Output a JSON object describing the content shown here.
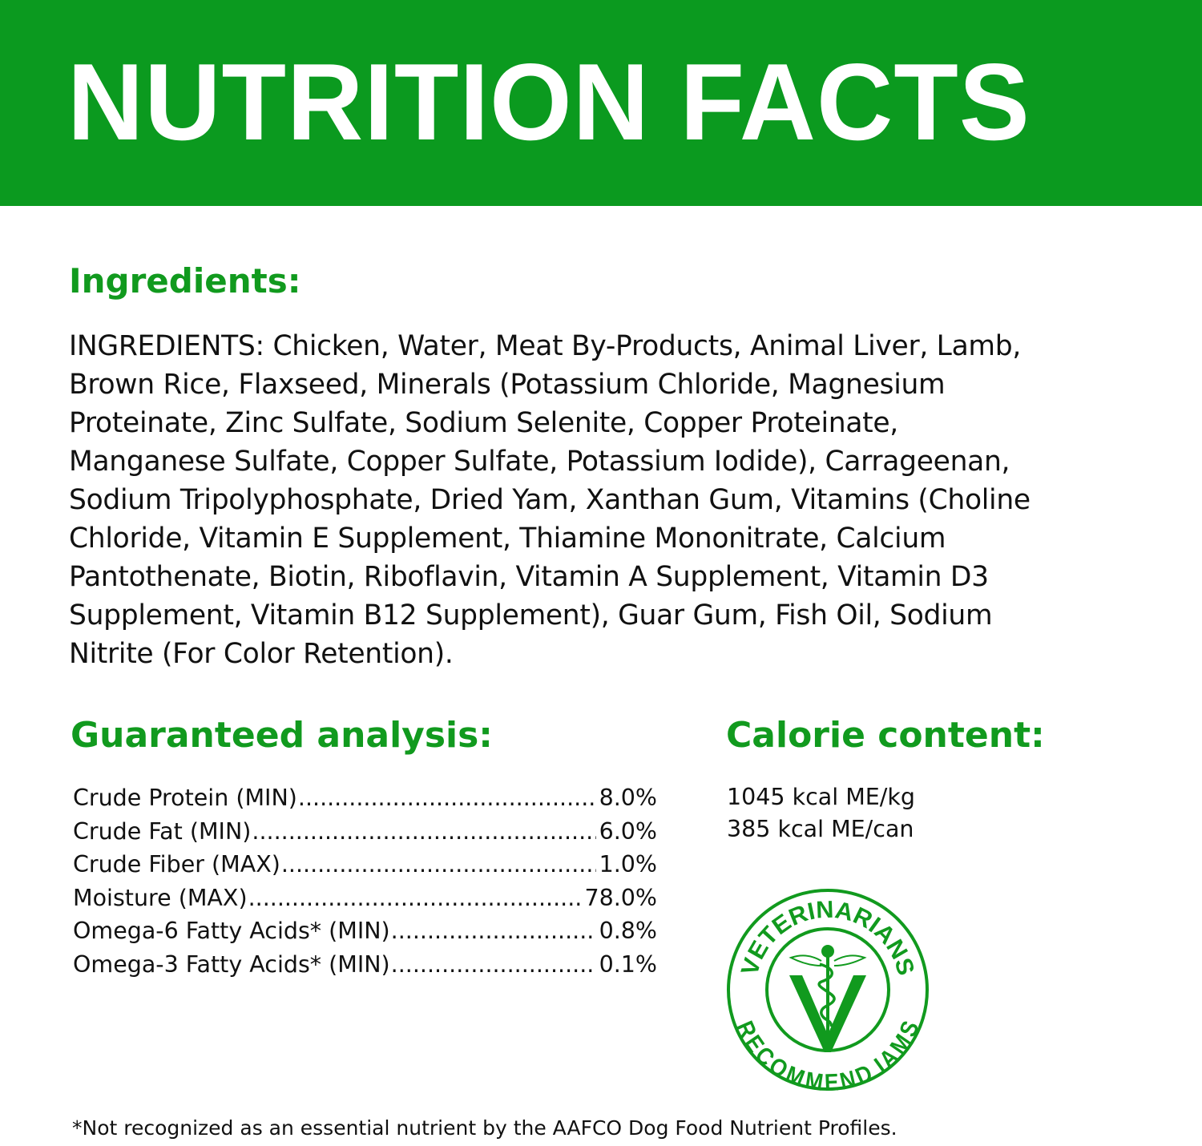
{
  "header": {
    "title": "NUTRITION FACTS"
  },
  "colors": {
    "brand_green": "#0b9a1f",
    "heading_green": "#119a1e",
    "text": "#111111"
  },
  "ingredients": {
    "heading": "Ingredients:",
    "lines": [
      "INGREDIENTS: Chicken, Water, Meat By-Products, Animal Liver, Lamb,",
      "Brown Rice, Flaxseed, Minerals (Potassium Chloride, Magnesium",
      "Proteinate, Zinc Sulfate, Sodium Selenite, Copper Proteinate,",
      "Manganese Sulfate, Copper Sulfate, Potassium Iodide), Carrageenan,",
      "Sodium Tripolyphosphate, Dried Yam, Xanthan Gum, Vitamins (Choline",
      "Chloride, Vitamin E Supplement, Thiamine Mononitrate, Calcium",
      "Pantothenate, Biotin, Riboflavin, Vitamin A Supplement, Vitamin D3",
      "Supplement, Vitamin B12 Supplement), Guar Gum, Fish Oil, Sodium",
      "Nitrite (For Color Retention)."
    ]
  },
  "guaranteed_analysis": {
    "heading": "Guaranteed analysis:",
    "rows": [
      {
        "label": "Crude Protein (MIN)",
        "value": "8.0%"
      },
      {
        "label": "Crude Fat (MIN)",
        "value": "6.0%"
      },
      {
        "label": "Crude Fiber (MAX)",
        "value": "1.0%"
      },
      {
        "label": "Moisture (MAX)",
        "value": "78.0%"
      },
      {
        "label": "Omega-6 Fatty Acids* (MIN)",
        "value": "0.8%"
      },
      {
        "label": "Omega-3 Fatty Acids* (MIN)",
        "value": "0.1%"
      }
    ]
  },
  "calorie_content": {
    "heading": "Calorie content:",
    "lines": [
      "1045 kcal ME/kg",
      "385 kcal ME/can"
    ]
  },
  "seal": {
    "top_text": "VETERINARIANS",
    "bottom_text": "RECOMMEND IAMS",
    "icon": "caduceus-v-icon"
  },
  "footnote": "*Not recognized as an essential nutrient by the AAFCO Dog Food Nutrient Profiles."
}
